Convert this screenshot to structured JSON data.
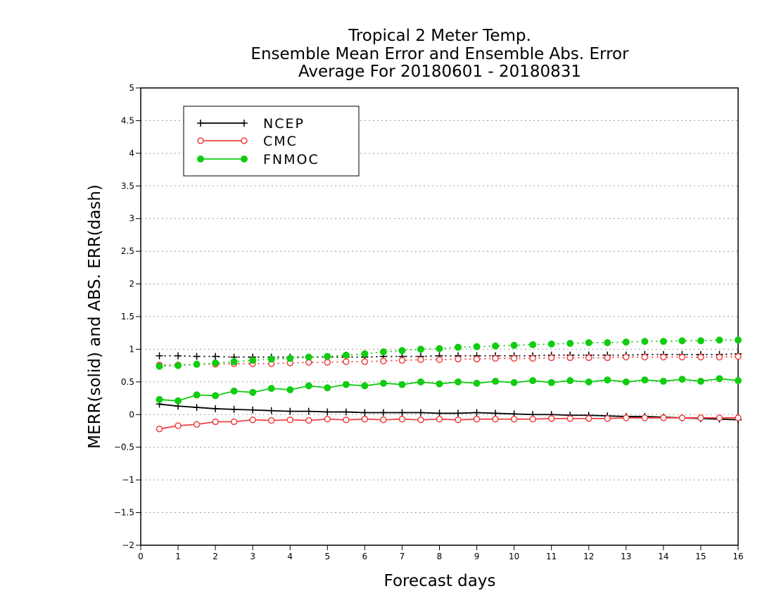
{
  "chart_data": {
    "type": "line",
    "title": [
      "Tropical 2 Meter Temp.",
      "Ensemble Mean Error and Ensemble Abs. Error",
      "Average For 20180601 - 20180831"
    ],
    "xlabel": "Forecast days",
    "ylabel": "MERR(solid) and ABS. ERR(dash)",
    "xlim": [
      0,
      16
    ],
    "ylim": [
      -2,
      5
    ],
    "xticks": [
      0,
      1,
      2,
      3,
      4,
      5,
      6,
      7,
      8,
      9,
      10,
      11,
      12,
      13,
      14,
      15,
      16
    ],
    "xtick_labels": [
      "0",
      "1",
      "2",
      "3",
      "4",
      "5",
      "6",
      "7",
      "8",
      "9",
      "10",
      "11",
      "12",
      "13",
      "14",
      "15",
      "16"
    ],
    "yticks": [
      -2,
      -1.5,
      -1,
      -0.5,
      0,
      0.5,
      1,
      1.5,
      2,
      2.5,
      3,
      3.5,
      4,
      4.5,
      5
    ],
    "ytick_labels": [
      "−2",
      "−1.5",
      "−1",
      "−0.5",
      "0",
      "0.5",
      "1",
      "1.5",
      "2",
      "2.5",
      "3",
      "3.5",
      "4",
      "4.5",
      "5"
    ],
    "grid": "horizontal dotted",
    "legend_position": "top-left",
    "x": [
      0.5,
      1,
      1.5,
      2,
      2.5,
      3,
      3.5,
      4,
      4.5,
      5,
      5.5,
      6,
      6.5,
      7,
      7.5,
      8,
      8.5,
      9,
      9.5,
      10,
      10.5,
      11,
      11.5,
      12,
      12.5,
      13,
      13.5,
      14,
      14.5,
      15,
      15.5,
      16
    ],
    "series": [
      {
        "name": "NCEP",
        "color": "#000000",
        "marker": "plus",
        "merr": [
          0.16,
          0.13,
          0.11,
          0.09,
          0.08,
          0.07,
          0.06,
          0.05,
          0.05,
          0.04,
          0.04,
          0.03,
          0.03,
          0.03,
          0.03,
          0.02,
          0.02,
          0.03,
          0.02,
          0.01,
          0.0,
          0.0,
          -0.01,
          -0.01,
          -0.02,
          -0.03,
          -0.03,
          -0.04,
          -0.05,
          -0.06,
          -0.07,
          -0.08
        ],
        "abs_err": [
          0.9,
          0.9,
          0.89,
          0.89,
          0.88,
          0.88,
          0.88,
          0.88,
          0.88,
          0.88,
          0.88,
          0.88,
          0.89,
          0.89,
          0.89,
          0.9,
          0.9,
          0.9,
          0.9,
          0.9,
          0.9,
          0.91,
          0.91,
          0.91,
          0.91,
          0.91,
          0.92,
          0.92,
          0.92,
          0.92,
          0.92,
          0.93
        ]
      },
      {
        "name": "CMC",
        "color": "#f04040",
        "marker": "open-circle",
        "merr": [
          -0.22,
          -0.17,
          -0.15,
          -0.11,
          -0.11,
          -0.08,
          -0.09,
          -0.08,
          -0.09,
          -0.07,
          -0.08,
          -0.07,
          -0.08,
          -0.07,
          -0.08,
          -0.07,
          -0.08,
          -0.07,
          -0.07,
          -0.07,
          -0.07,
          -0.06,
          -0.06,
          -0.06,
          -0.06,
          -0.05,
          -0.05,
          -0.05,
          -0.05,
          -0.05,
          -0.05,
          -0.05
        ],
        "abs_err": [
          0.76,
          0.76,
          0.77,
          0.77,
          0.78,
          0.78,
          0.78,
          0.79,
          0.8,
          0.8,
          0.81,
          0.81,
          0.82,
          0.83,
          0.84,
          0.84,
          0.85,
          0.85,
          0.86,
          0.86,
          0.86,
          0.87,
          0.87,
          0.87,
          0.87,
          0.88,
          0.88,
          0.88,
          0.88,
          0.88,
          0.88,
          0.89
        ]
      },
      {
        "name": "FNMOC",
        "color": "#11cc11",
        "marker": "filled-circle",
        "merr": [
          0.23,
          0.21,
          0.3,
          0.29,
          0.36,
          0.34,
          0.4,
          0.38,
          0.44,
          0.41,
          0.46,
          0.44,
          0.48,
          0.46,
          0.5,
          0.47,
          0.5,
          0.48,
          0.51,
          0.49,
          0.52,
          0.49,
          0.52,
          0.5,
          0.53,
          0.5,
          0.53,
          0.51,
          0.54,
          0.51,
          0.55,
          0.52
        ],
        "abs_err": [
          0.74,
          0.75,
          0.77,
          0.79,
          0.81,
          0.83,
          0.85,
          0.86,
          0.88,
          0.89,
          0.91,
          0.93,
          0.96,
          0.98,
          1.0,
          1.01,
          1.03,
          1.04,
          1.05,
          1.06,
          1.07,
          1.08,
          1.09,
          1.1,
          1.1,
          1.11,
          1.12,
          1.12,
          1.13,
          1.13,
          1.14,
          1.14
        ]
      }
    ]
  }
}
